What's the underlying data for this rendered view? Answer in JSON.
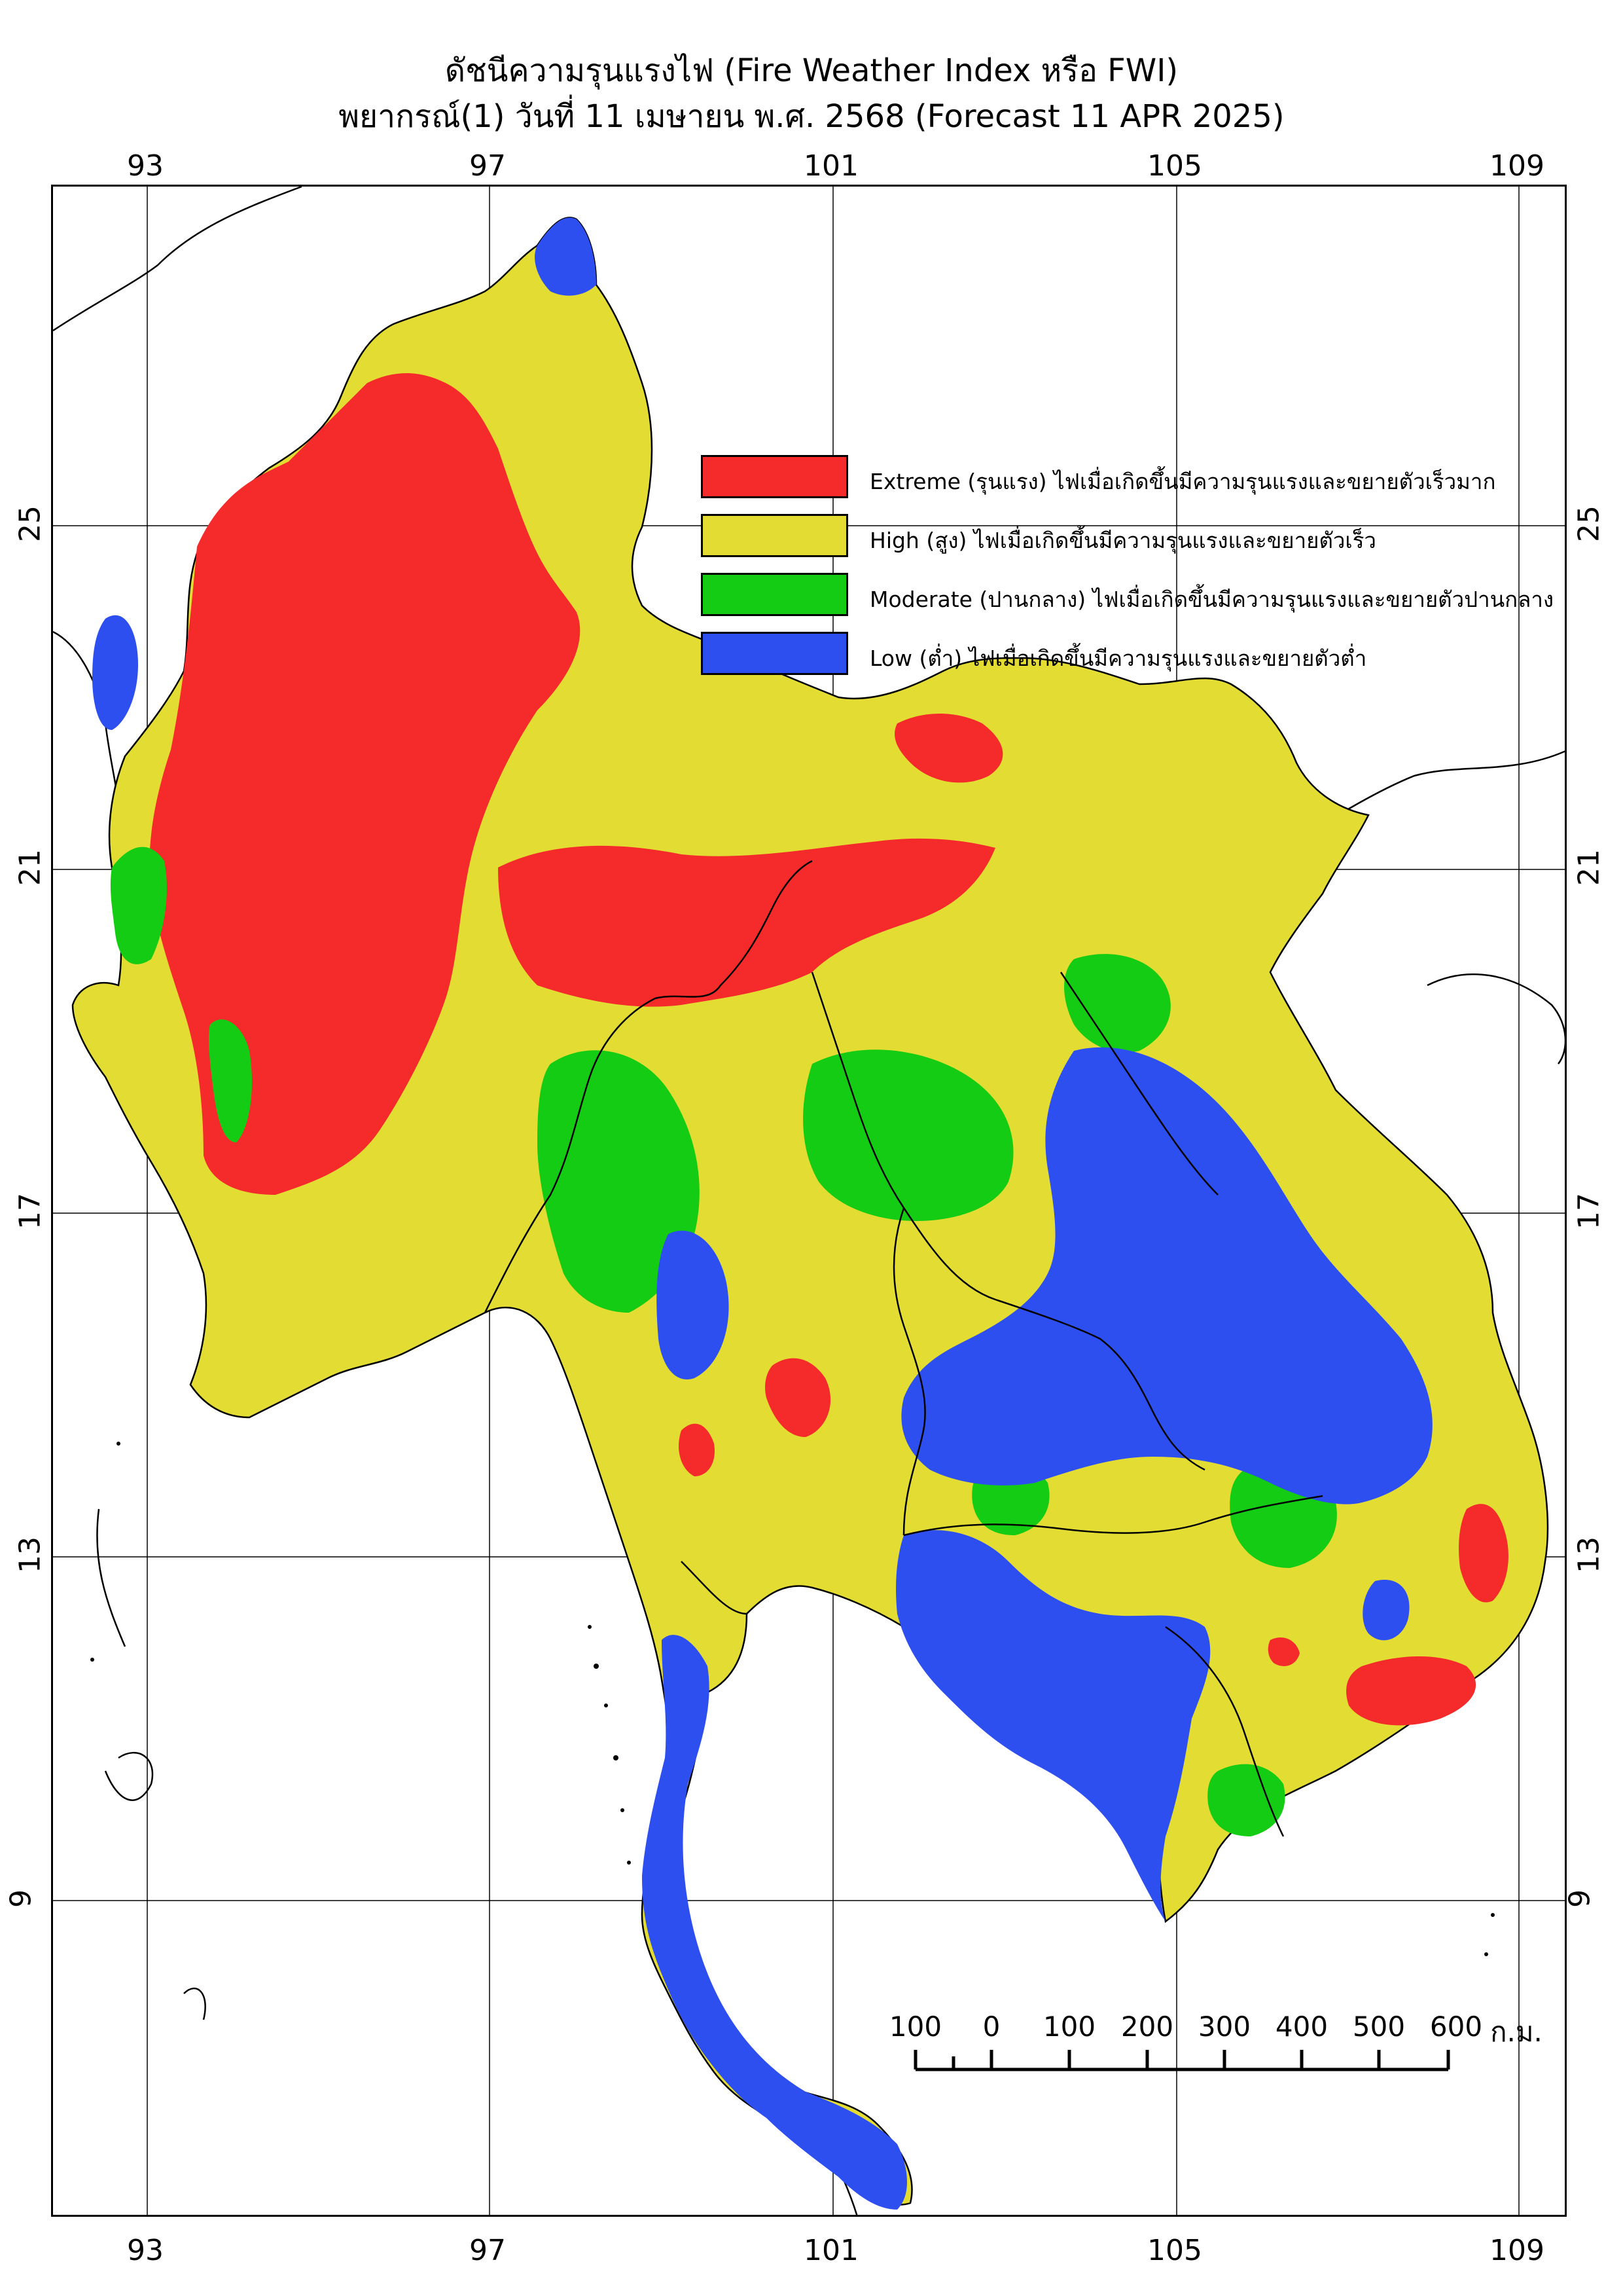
{
  "title": "ดัชนีความรุนแรงไฟ (Fire Weather Index หรือ FWI)",
  "subtitle": "พยากรณ์(1) วันที่ 11 เมษายน พ.ศ. 2568 (Forecast 11 APR 2025)",
  "longitude_ticks": [
    "93",
    "97",
    "101",
    "105",
    "109"
  ],
  "latitude_ticks": [
    "25",
    "21",
    "17",
    "13",
    "9"
  ],
  "legend": [
    {
      "label": "Extreme (รุนแรง) ไฟเมื่อเกิดขึ้นมีความรุนแรงและขยายตัวเร็วมาก",
      "color": "#f52a2a"
    },
    {
      "label": "High (สูง) ไฟเมื่อเกิดขึ้นมีความรุนแรงและขยายตัวเร็ว",
      "color": "#e3dc33"
    },
    {
      "label": "Moderate (ปานกลาง) ไฟเมื่อเกิดขึ้นมีความรุนแรงและขยายตัวปานกลาง",
      "color": "#13cc13"
    },
    {
      "label": "Low (ต่ำ) ไฟเมื่อเกิดขึ้นมีความรุนแรงและขยายตัวต่ำ",
      "color": "#2e4ff0"
    }
  ],
  "scale_bar": {
    "labels": [
      "100",
      "0",
      "100",
      "200",
      "300",
      "400",
      "500",
      "600"
    ],
    "unit": "ก.ม."
  }
}
